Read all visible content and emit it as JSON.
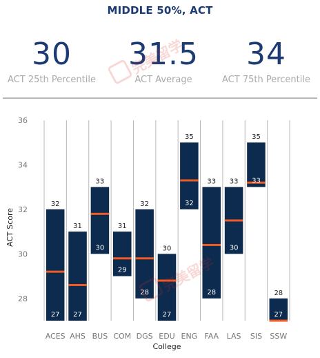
{
  "header": {
    "title": "MIDDLE 50%, ACT"
  },
  "stats": [
    {
      "value": "30",
      "label": "ACT 25th Percentile"
    },
    {
      "value": "31.5",
      "label": "ACT Average"
    },
    {
      "value": "34",
      "label": "ACT 75th Percentile"
    }
  ],
  "watermark": {
    "text": "完美留学"
  },
  "colors": {
    "bar": "#0d2a4f",
    "median": "#f15a22",
    "title": "#1d3b73",
    "grid": "#b9b9b9"
  },
  "chart_data": {
    "type": "bar",
    "subtype": "floating-range",
    "xlabel": "College",
    "ylabel": "ACT Score",
    "ylim": [
      27,
      36
    ],
    "yticks": [
      28,
      30,
      32,
      34,
      36
    ],
    "categories": [
      "ACES",
      "AHS",
      "BUS",
      "COM",
      "DGS",
      "EDU",
      "ENG",
      "FAA",
      "LAS",
      "SIS",
      "SSW"
    ],
    "series": [
      {
        "name": "",
        "values": [
          27,
          27,
          30,
          29,
          28,
          27,
          32,
          28,
          30,
          33,
          27
        ]
      },
      {
        "name": "",
        "values": [
          32,
          31,
          33,
          31,
          32,
          30,
          35,
          33,
          33,
          35,
          28
        ]
      },
      {
        "name": "",
        "values": [
          29.2,
          28.6,
          31.8,
          29.8,
          29.8,
          28.8,
          33.3,
          30.4,
          31.5,
          33.2,
          27.0
        ]
      }
    ],
    "grid": "vertical",
    "legend": "none"
  }
}
